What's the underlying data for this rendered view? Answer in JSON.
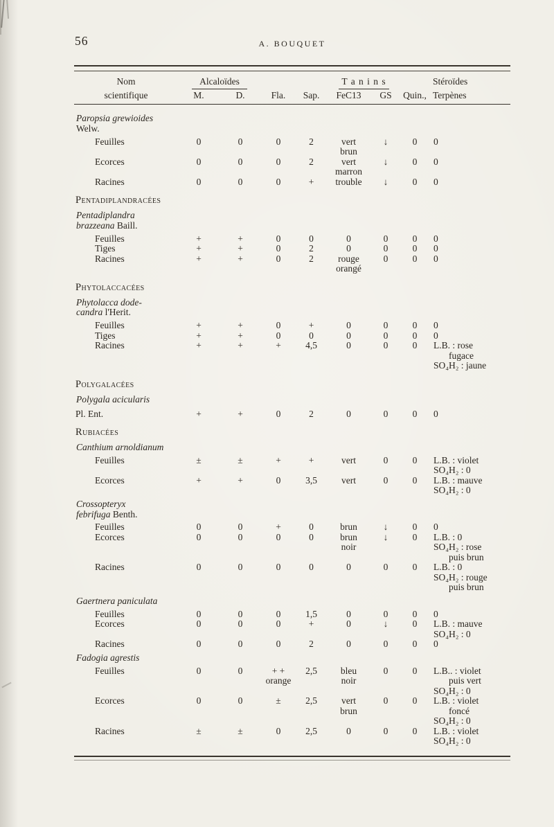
{
  "page": {
    "number": "56",
    "running_head": "A. BOUQUET"
  },
  "table": {
    "header": {
      "name_line1": "Nom",
      "name_line2": "scientifique",
      "alcaloides": "Alcaloïdes",
      "m": "M.",
      "d": "D.",
      "fla": "Fla.",
      "sap": "Sap.",
      "tanins": "T a n i n s",
      "fecl3": "FeC13",
      "gs": "GS",
      "quin": "Quin.,",
      "steroides_line1": "Stéroïdes",
      "steroides_line2": "Terpènes"
    },
    "rows": [
      {
        "type": "species",
        "lines": [
          [
            {
              "t": "Paropsia grewioides",
              "i": true
            }
          ],
          [
            {
              "t": "Welw.",
              "i": false
            }
          ]
        ]
      },
      {
        "type": "data",
        "organ": "Feuilles",
        "m": "0",
        "d": "0",
        "fla": "0",
        "sap": "2",
        "fecl3": [
          "vert",
          "brun"
        ],
        "gs": "↓",
        "quin": "0",
        "ster": [
          {
            "t": "0"
          }
        ]
      },
      {
        "type": "data",
        "organ": "Ecorces",
        "m": "0",
        "d": "0",
        "fla": "0",
        "sap": "2",
        "fecl3": [
          "vert",
          "marron"
        ],
        "gs": "↓",
        "quin": "0",
        "ster": [
          {
            "t": "0"
          }
        ]
      },
      {
        "type": "data",
        "organ": "Racines",
        "m": "0",
        "d": "0",
        "fla": "0",
        "sap": "+",
        "fecl3": [
          "trouble"
        ],
        "gs": "↓",
        "quin": "0",
        "ster": [
          {
            "t": "0"
          }
        ]
      },
      {
        "type": "family",
        "label": "Pentadiplandracées"
      },
      {
        "type": "species",
        "lines": [
          [
            {
              "t": "Pentadiplandra",
              "i": true
            }
          ],
          [
            {
              "t": "brazzeana",
              "i": true
            },
            {
              "t": " Baill.",
              "i": false
            }
          ]
        ]
      },
      {
        "type": "data",
        "organ": "Feuilles",
        "m": "+",
        "d": "+",
        "fla": "0",
        "sap": "0",
        "fecl3": [
          "0"
        ],
        "gs": "0",
        "quin": "0",
        "ster": [
          {
            "t": "0"
          }
        ]
      },
      {
        "type": "data",
        "organ": "Tiges",
        "m": "+",
        "d": "+",
        "fla": "0",
        "sap": "2",
        "fecl3": [
          "0"
        ],
        "gs": "0",
        "quin": "0",
        "ster": [
          {
            "t": "0"
          }
        ]
      },
      {
        "type": "data",
        "organ": "Racines",
        "m": "+",
        "d": "+",
        "fla": "0",
        "sap": "2",
        "fecl3": [
          "rouge",
          "orangé"
        ],
        "gs": "0",
        "quin": "0",
        "ster": [
          {
            "t": "0"
          }
        ]
      },
      {
        "type": "family",
        "label": "Phytolaccacées"
      },
      {
        "type": "species",
        "lines": [
          [
            {
              "t": "Phytolacca dode-",
              "i": true
            }
          ],
          [
            {
              "t": "candra",
              "i": true
            },
            {
              "t": " l'Herit.",
              "i": false
            }
          ]
        ]
      },
      {
        "type": "data",
        "organ": "Feuilles",
        "m": "+",
        "d": "+",
        "fla": "0",
        "sap": "+",
        "fecl3": [
          "0"
        ],
        "gs": "0",
        "quin": "0",
        "ster": [
          {
            "t": "0"
          }
        ]
      },
      {
        "type": "data",
        "organ": "Tiges",
        "m": "+",
        "d": "+",
        "fla": "0",
        "sap": "0",
        "fecl3": [
          "0"
        ],
        "gs": "0",
        "quin": "0",
        "ster": [
          {
            "t": "0"
          }
        ]
      },
      {
        "type": "data",
        "organ": "Racines",
        "m": "+",
        "d": "+",
        "fla": "+",
        "sap": "4,5",
        "fecl3": [
          "0"
        ],
        "gs": "0",
        "quin": "0",
        "ster": [
          {
            "t": "L.B. : rose"
          },
          {
            "t": "fugace",
            "ind": true
          },
          {
            "t": "SO₄H₂ : jaune"
          }
        ]
      },
      {
        "type": "family",
        "label": "Polygalacées"
      },
      {
        "type": "species",
        "lines": [
          [
            {
              "t": "Polygala acicularis",
              "i": true
            }
          ]
        ]
      },
      {
        "type": "data",
        "organ": "Pl. Ent.",
        "flush": true,
        "m": "+",
        "d": "+",
        "fla": "0",
        "sap": "2",
        "fecl3": [
          "0"
        ],
        "gs": "0",
        "quin": "0",
        "ster": [
          {
            "t": "0"
          }
        ]
      },
      {
        "type": "family",
        "label": "Rubiacées"
      },
      {
        "type": "species",
        "lines": [
          [
            {
              "t": "Canthium arnoldianum",
              "i": true
            }
          ]
        ]
      },
      {
        "type": "data",
        "organ": "Feuilles",
        "m": "±",
        "d": "±",
        "fla": "+",
        "sap": "+",
        "fecl3": [
          "vert"
        ],
        "gs": "0",
        "quin": "0",
        "ster": [
          {
            "t": "L.B. : violet"
          },
          {
            "t": "SO₄H₂ : 0"
          }
        ]
      },
      {
        "type": "data",
        "organ": "Ecorces",
        "m": "+",
        "d": "+",
        "fla": "0",
        "sap": "3,5",
        "fecl3": [
          "vert"
        ],
        "gs": "0",
        "quin": "0",
        "ster": [
          {
            "t": "L.B. : mauve"
          },
          {
            "t": "SO₄H₂ : 0"
          }
        ]
      },
      {
        "type": "species",
        "lines": [
          [
            {
              "t": "Crossopteryx",
              "i": true
            }
          ],
          [
            {
              "t": "febrifuga",
              "i": true
            },
            {
              "t": " Benth.",
              "i": false
            }
          ]
        ]
      },
      {
        "type": "data",
        "organ": "Feuilles",
        "m": "0",
        "d": "0",
        "fla": "+",
        "sap": "0",
        "fecl3": [
          "brun"
        ],
        "gs": "↓",
        "quin": "0",
        "ster": [
          {
            "t": "0"
          }
        ]
      },
      {
        "type": "data",
        "organ": "Ecorces",
        "m": "0",
        "d": "0",
        "fla": "0",
        "sap": "0",
        "fecl3": [
          "brun",
          "noir"
        ],
        "gs": "↓",
        "quin": "0",
        "ster": [
          {
            "t": "L.B. : 0"
          },
          {
            "t": "SO₄H₂ : rose"
          },
          {
            "t": "puis brun",
            "ind": true
          }
        ]
      },
      {
        "type": "data",
        "organ": "Racines",
        "m": "0",
        "d": "0",
        "fla": "0",
        "sap": "0",
        "fecl3": [
          "0"
        ],
        "gs": "0",
        "quin": "0",
        "ster": [
          {
            "t": "L.B. : 0"
          },
          {
            "t": "SO₄H₂ : rouge"
          },
          {
            "t": "puis brun",
            "ind": true
          }
        ]
      },
      {
        "type": "species",
        "lines": [
          [
            {
              "t": "Gaertnera paniculata",
              "i": true
            }
          ]
        ]
      },
      {
        "type": "data",
        "organ": "Feuilles",
        "m": "0",
        "d": "0",
        "fla": "0",
        "sap": "1,5",
        "fecl3": [
          "0"
        ],
        "gs": "0",
        "quin": "0",
        "ster": [
          {
            "t": "0"
          }
        ]
      },
      {
        "type": "data",
        "organ": "Ecorces",
        "m": "0",
        "d": "0",
        "fla": "0",
        "sap": "+",
        "fecl3": [
          "0"
        ],
        "gs": "↓",
        "quin": "0",
        "ster": [
          {
            "t": "L.B. : mauve"
          },
          {
            "t": "SO₄H₂ : 0"
          }
        ]
      },
      {
        "type": "data",
        "organ": "Racines",
        "m": "0",
        "d": "0",
        "fla": "0",
        "sap": "2",
        "fecl3": [
          "0"
        ],
        "gs": "0",
        "quin": "0",
        "ster": [
          {
            "t": "0"
          }
        ]
      },
      {
        "type": "species",
        "lines": [
          [
            {
              "t": "Fadogia agrestis",
              "i": true
            }
          ]
        ]
      },
      {
        "type": "data",
        "organ": "Feuilles",
        "m": "0",
        "d": "0",
        "fla": [
          "+ +",
          "orange"
        ],
        "sap": "2,5",
        "fecl3": [
          "bleu",
          "noir"
        ],
        "gs": "0",
        "quin": "0",
        "ster": [
          {
            "t": "L.B.. : violet"
          },
          {
            "t": "puis vert",
            "ind": true
          },
          {
            "t": "SO₄H₂ : 0"
          }
        ]
      },
      {
        "type": "data",
        "organ": "Ecorces",
        "m": "0",
        "d": "0",
        "fla": "±",
        "sap": "2,5",
        "fecl3": [
          "vert",
          "brun"
        ],
        "gs": "0",
        "quin": "0",
        "ster": [
          {
            "t": "L.B. : violet"
          },
          {
            "t": "foncé",
            "ind": true
          },
          {
            "t": "SO₄H₂ : 0"
          }
        ]
      },
      {
        "type": "data",
        "organ": "Racines",
        "m": "±",
        "d": "±",
        "fla": "0",
        "sap": "2,5",
        "fecl3": [
          "0"
        ],
        "gs": "0",
        "quin": "0",
        "ster": [
          {
            "t": "L.B. : violet"
          },
          {
            "t": "SO₄H₂ : 0"
          }
        ]
      }
    ]
  }
}
